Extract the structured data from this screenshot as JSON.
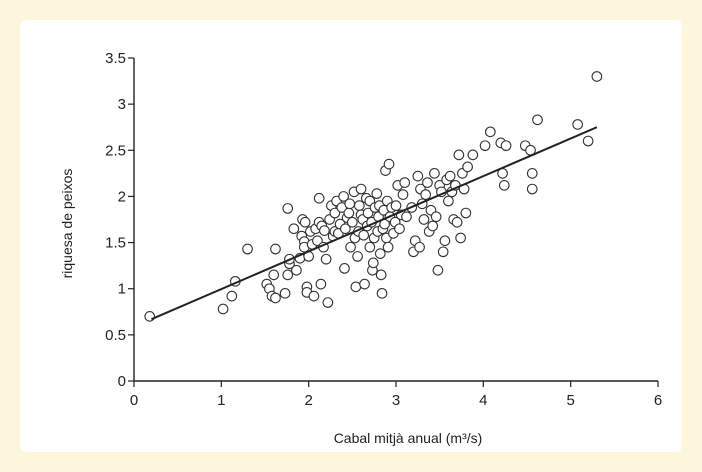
{
  "colors": {
    "background": "#fdf6dc",
    "panel": "#ffffff",
    "axis": "#222222",
    "point_stroke": "#333333",
    "fit_line": "#222222"
  },
  "chart_data": {
    "type": "scatter",
    "title": "",
    "xlabel": "Cabal mitjà anual (m³/s)",
    "ylabel": "riquesa de peixos",
    "xlim": [
      0,
      6
    ],
    "ylim": [
      0,
      3.5
    ],
    "xticks": [
      "0",
      "1",
      "2",
      "3",
      "4",
      "5",
      "6"
    ],
    "yticks": [
      "0",
      "0.5",
      "1",
      "1.5",
      "2",
      "2.5",
      "3",
      "3.5"
    ],
    "grid": false,
    "legend": "none",
    "series": [
      {
        "points": [
          [
            0.18,
            0.7
          ],
          [
            1.02,
            0.78
          ],
          [
            1.12,
            0.92
          ],
          [
            1.16,
            1.08
          ],
          [
            1.3,
            1.43
          ],
          [
            1.52,
            1.05
          ],
          [
            1.55,
            1.0
          ],
          [
            1.58,
            0.92
          ],
          [
            1.62,
            0.9
          ],
          [
            1.6,
            1.15
          ],
          [
            1.62,
            1.43
          ],
          [
            1.73,
            0.95
          ],
          [
            1.76,
            1.15
          ],
          [
            1.78,
            1.27
          ],
          [
            1.78,
            1.32
          ],
          [
            1.76,
            1.87
          ],
          [
            1.83,
            1.65
          ],
          [
            1.86,
            1.2
          ],
          [
            1.9,
            1.33
          ],
          [
            1.92,
            1.57
          ],
          [
            1.93,
            1.75
          ],
          [
            1.95,
            1.51
          ],
          [
            1.95,
            1.45
          ],
          [
            1.96,
            1.72
          ],
          [
            1.98,
            1.02
          ],
          [
            1.98,
            0.96
          ],
          [
            2.0,
            1.35
          ],
          [
            2.02,
            1.62
          ],
          [
            2.04,
            1.48
          ],
          [
            2.06,
            0.92
          ],
          [
            2.08,
            1.65
          ],
          [
            2.1,
            1.52
          ],
          [
            2.12,
            1.72
          ],
          [
            2.12,
            1.98
          ],
          [
            2.14,
            1.05
          ],
          [
            2.15,
            1.68
          ],
          [
            2.17,
            1.45
          ],
          [
            2.18,
            1.63
          ],
          [
            2.2,
            1.32
          ],
          [
            2.22,
            0.85
          ],
          [
            2.24,
            1.75
          ],
          [
            2.26,
            1.9
          ],
          [
            2.28,
            1.57
          ],
          [
            2.3,
            1.62
          ],
          [
            2.3,
            1.82
          ],
          [
            2.32,
            1.95
          ],
          [
            2.34,
            1.6
          ],
          [
            2.36,
            1.7
          ],
          [
            2.38,
            1.88
          ],
          [
            2.4,
            2.0
          ],
          [
            2.41,
            1.22
          ],
          [
            2.42,
            1.65
          ],
          [
            2.44,
            1.77
          ],
          [
            2.46,
            1.82
          ],
          [
            2.47,
            1.92
          ],
          [
            2.48,
            1.45
          ],
          [
            2.5,
            1.72
          ],
          [
            2.52,
            2.05
          ],
          [
            2.53,
            1.55
          ],
          [
            2.54,
            1.02
          ],
          [
            2.56,
            1.35
          ],
          [
            2.57,
            1.62
          ],
          [
            2.58,
            1.9
          ],
          [
            2.6,
            1.8
          ],
          [
            2.6,
            2.08
          ],
          [
            2.62,
            1.75
          ],
          [
            2.63,
            1.58
          ],
          [
            2.64,
            1.05
          ],
          [
            2.66,
            1.98
          ],
          [
            2.67,
            1.68
          ],
          [
            2.68,
            1.82
          ],
          [
            2.7,
            1.95
          ],
          [
            2.7,
            1.45
          ],
          [
            2.72,
            1.72
          ],
          [
            2.73,
            1.2
          ],
          [
            2.74,
            1.28
          ],
          [
            2.75,
            1.55
          ],
          [
            2.76,
            1.88
          ],
          [
            2.78,
            2.03
          ],
          [
            2.79,
            1.62
          ],
          [
            2.8,
            1.78
          ],
          [
            2.81,
            1.9
          ],
          [
            2.82,
            1.38
          ],
          [
            2.83,
            1.15
          ],
          [
            2.84,
            0.95
          ],
          [
            2.85,
            1.65
          ],
          [
            2.86,
            1.85
          ],
          [
            2.87,
            1.7
          ],
          [
            2.88,
            2.28
          ],
          [
            2.89,
            1.55
          ],
          [
            2.9,
            1.95
          ],
          [
            2.91,
            1.45
          ],
          [
            2.92,
            2.35
          ],
          [
            2.93,
            1.78
          ],
          [
            2.95,
            1.88
          ],
          [
            2.97,
            1.6
          ],
          [
            2.99,
            1.72
          ],
          [
            3.0,
            1.9
          ],
          [
            3.02,
            2.12
          ],
          [
            3.04,
            1.65
          ],
          [
            3.06,
            1.8
          ],
          [
            3.08,
            2.02
          ],
          [
            3.1,
            2.15
          ],
          [
            3.12,
            1.78
          ],
          [
            3.18,
            1.88
          ],
          [
            3.2,
            1.4
          ],
          [
            3.22,
            1.52
          ],
          [
            3.25,
            2.22
          ],
          [
            3.27,
            1.45
          ],
          [
            3.28,
            2.08
          ],
          [
            3.3,
            1.92
          ],
          [
            3.32,
            1.75
          ],
          [
            3.34,
            2.02
          ],
          [
            3.36,
            2.15
          ],
          [
            3.38,
            1.62
          ],
          [
            3.4,
            1.85
          ],
          [
            3.42,
            1.68
          ],
          [
            3.44,
            2.25
          ],
          [
            3.46,
            1.78
          ],
          [
            3.48,
            1.2
          ],
          [
            3.5,
            2.12
          ],
          [
            3.52,
            2.05
          ],
          [
            3.54,
            1.4
          ],
          [
            3.56,
            1.52
          ],
          [
            3.58,
            2.18
          ],
          [
            3.6,
            1.95
          ],
          [
            3.62,
            2.22
          ],
          [
            3.64,
            2.05
          ],
          [
            3.66,
            1.75
          ],
          [
            3.68,
            2.12
          ],
          [
            3.7,
            1.72
          ],
          [
            3.72,
            2.45
          ],
          [
            3.74,
            1.55
          ],
          [
            3.76,
            2.25
          ],
          [
            3.78,
            2.08
          ],
          [
            3.8,
            1.82
          ],
          [
            3.82,
            2.32
          ],
          [
            3.88,
            2.45
          ],
          [
            4.02,
            2.55
          ],
          [
            4.08,
            2.7
          ],
          [
            4.2,
            2.58
          ],
          [
            4.22,
            2.25
          ],
          [
            4.24,
            2.12
          ],
          [
            4.26,
            2.55
          ],
          [
            4.48,
            2.55
          ],
          [
            4.54,
            2.5
          ],
          [
            4.56,
            2.25
          ],
          [
            4.56,
            2.08
          ],
          [
            4.62,
            2.83
          ],
          [
            5.08,
            2.78
          ],
          [
            5.2,
            2.6
          ],
          [
            5.3,
            3.3
          ]
        ]
      }
    ],
    "fit_line": {
      "x": [
        0.2,
        5.3
      ],
      "y": [
        0.67,
        2.75
      ]
    }
  }
}
